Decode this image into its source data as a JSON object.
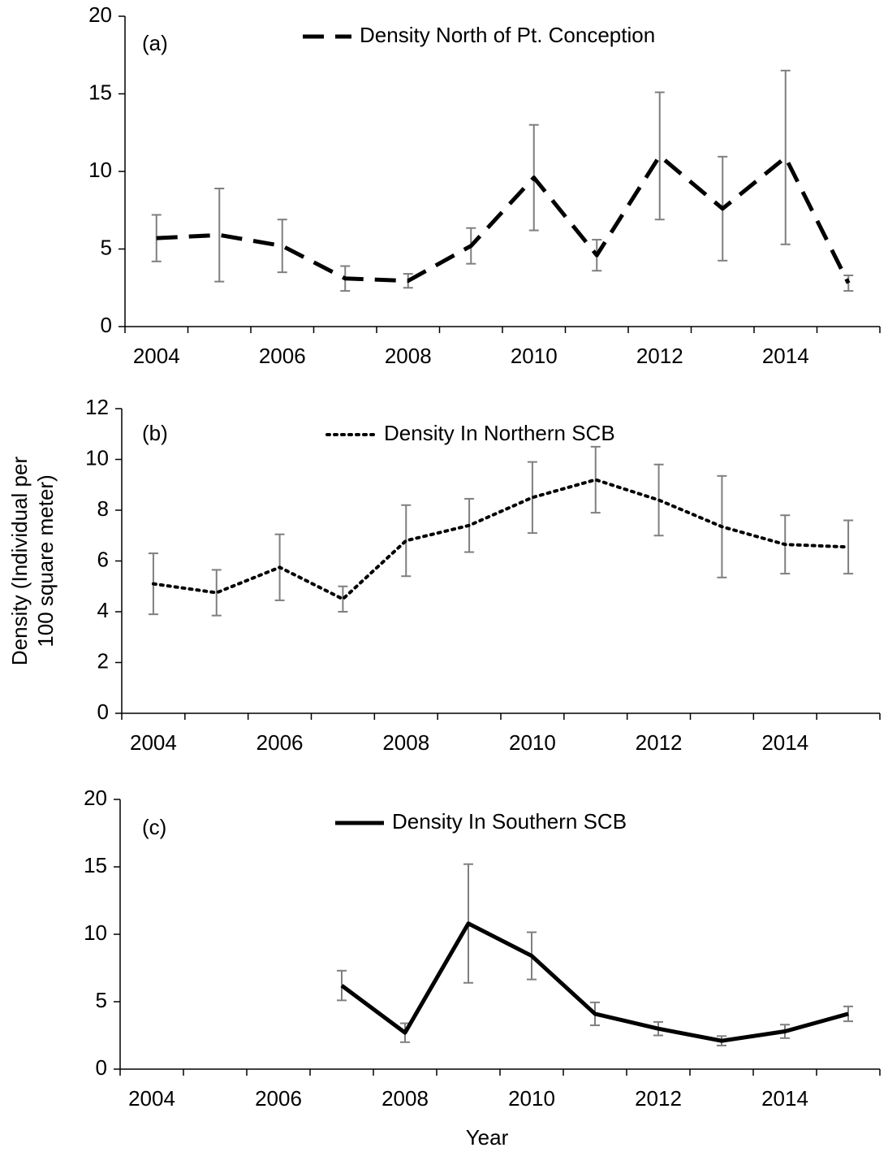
{
  "chart_data": [
    {
      "type": "line",
      "annotation": "(a)",
      "categories": [
        "2004",
        null,
        "2006",
        null,
        "2008",
        null,
        "2010",
        null,
        "2012",
        null,
        "2014",
        null
      ],
      "series": [
        {
          "name": "Density North of Pt. Conception",
          "color": "#000000",
          "dash": "dashed",
          "values": [
            5.7,
            5.9,
            5.2,
            3.1,
            2.95,
            5.2,
            9.6,
            4.6,
            11.0,
            7.6,
            10.9,
            2.8
          ],
          "errors": [
            1.5,
            3.0,
            1.7,
            0.8,
            0.45,
            1.15,
            3.4,
            1.0,
            4.1,
            3.35,
            5.6,
            0.5
          ]
        }
      ],
      "ylim": [
        0,
        20
      ],
      "yticks": [
        0,
        5,
        10,
        15,
        20
      ],
      "grid": false
    },
    {
      "type": "line",
      "annotation": "(b)",
      "y_label": [
        "Density (Individual per",
        "100 square meter)"
      ],
      "categories": [
        "2004",
        null,
        "2006",
        null,
        "2008",
        null,
        "2010",
        null,
        "2012",
        null,
        "2014",
        null
      ],
      "series": [
        {
          "name": "Density In Northern SCB",
          "color": "#000000",
          "dash": "dotted",
          "values": [
            5.1,
            4.75,
            5.75,
            4.5,
            6.8,
            7.4,
            8.5,
            9.2,
            8.4,
            7.35,
            6.65,
            6.55
          ],
          "errors": [
            1.2,
            0.9,
            1.3,
            0.5,
            1.4,
            1.05,
            1.4,
            1.3,
            1.4,
            2.0,
            1.15,
            1.05
          ]
        }
      ],
      "ylim": [
        0,
        12
      ],
      "yticks": [
        0,
        2,
        4,
        6,
        8,
        10,
        12
      ],
      "grid": false
    },
    {
      "type": "line",
      "annotation": "(c)",
      "x_label": "Year",
      "categories": [
        "2004",
        null,
        "2006",
        null,
        "2008",
        null,
        "2010",
        null,
        "2012",
        null,
        "2014",
        null
      ],
      "series": [
        {
          "name": "Density In Southern SCB",
          "color": "#000000",
          "dash": "solid",
          "values": [
            null,
            null,
            null,
            6.2,
            2.7,
            10.8,
            8.4,
            4.1,
            3.0,
            2.1,
            2.8,
            4.1
          ],
          "errors": [
            null,
            null,
            null,
            1.1,
            0.7,
            4.4,
            1.75,
            0.85,
            0.5,
            0.35,
            0.5,
            0.55
          ]
        }
      ],
      "ylim": [
        0,
        20
      ],
      "yticks": [
        0,
        5,
        10,
        15,
        20
      ],
      "grid": false
    }
  ]
}
